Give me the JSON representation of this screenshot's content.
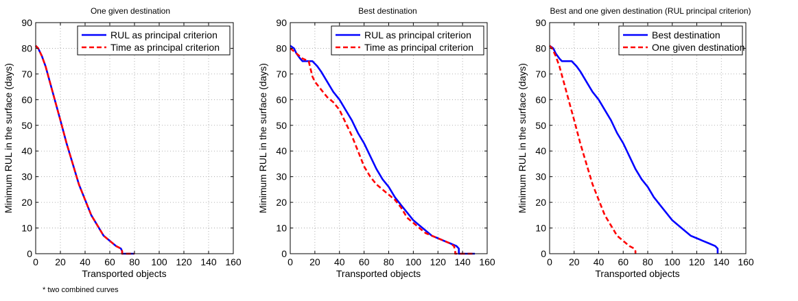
{
  "footnote": "* two combined curves",
  "colors": {
    "blue": "#0000ff",
    "red": "#ff0000",
    "grid": "#9a9a9a",
    "axis": "#000000"
  },
  "chart_data": [
    {
      "type": "line",
      "title": "One given destination",
      "xlabel": "Transported objects",
      "ylabel": "Minimum RUL in the surface (days)",
      "xlim": [
        0,
        160
      ],
      "ylim": [
        0,
        90
      ],
      "xticks": [
        0,
        20,
        40,
        60,
        80,
        100,
        120,
        140,
        160
      ],
      "yticks": [
        0,
        10,
        20,
        30,
        40,
        50,
        60,
        70,
        80,
        90
      ],
      "grid": true,
      "legend_position": "top-right",
      "series": [
        {
          "name": "RUL as principal criterion",
          "color": "#0000ff",
          "dash": "solid",
          "x": [
            0,
            2,
            5,
            8,
            12,
            16,
            20,
            25,
            30,
            35,
            40,
            45,
            50,
            55,
            60,
            65,
            69,
            70,
            70,
            80
          ],
          "y": [
            81,
            80,
            77,
            73,
            66,
            59,
            52,
            43,
            35,
            27,
            21,
            15,
            11,
            7,
            5,
            3,
            2,
            1,
            0,
            0
          ]
        },
        {
          "name": "Time as principal criterion",
          "color": "#ff0000",
          "dash": "dashed",
          "x": [
            0,
            2,
            5,
            8,
            12,
            16,
            20,
            25,
            30,
            35,
            40,
            45,
            50,
            55,
            60,
            65,
            69,
            70,
            70,
            80
          ],
          "y": [
            81,
            80,
            77,
            73,
            66,
            59,
            52,
            43,
            35,
            27,
            21,
            15,
            11,
            7,
            5,
            3,
            2,
            1,
            0,
            0
          ]
        }
      ]
    },
    {
      "type": "line",
      "title": "Best destination",
      "xlabel": "Transported objects",
      "ylabel": "Minimum RUL in the surface (days)",
      "xlim": [
        0,
        160
      ],
      "ylim": [
        0,
        90
      ],
      "xticks": [
        0,
        20,
        40,
        60,
        80,
        100,
        120,
        140,
        160
      ],
      "yticks": [
        0,
        10,
        20,
        30,
        40,
        50,
        60,
        70,
        80,
        90
      ],
      "grid": true,
      "legend_position": "top-right",
      "series": [
        {
          "name": "RUL as principal criterion",
          "color": "#0000ff",
          "dash": "solid",
          "x": [
            0,
            3,
            5,
            8,
            10,
            18,
            22,
            25,
            30,
            35,
            40,
            45,
            50,
            55,
            60,
            65,
            70,
            75,
            80,
            85,
            90,
            95,
            100,
            105,
            110,
            115,
            120,
            125,
            130,
            135,
            137,
            137,
            150
          ],
          "y": [
            81,
            80,
            78,
            76,
            75,
            75,
            73,
            71,
            67,
            63,
            60,
            56,
            52,
            47,
            43,
            38,
            33,
            29,
            26,
            22,
            19,
            16,
            13,
            11,
            9,
            7,
            6,
            5,
            4,
            3,
            2,
            0,
            0
          ]
        },
        {
          "name": "Time as principal criterion",
          "color": "#ff0000",
          "dash": "dashed",
          "x": [
            0,
            5,
            10,
            15,
            18,
            20,
            25,
            30,
            35,
            40,
            45,
            50,
            55,
            60,
            65,
            70,
            75,
            80,
            85,
            90,
            95,
            100,
            105,
            110,
            115,
            120,
            125,
            130,
            133,
            134,
            134,
            150
          ],
          "y": [
            80,
            78,
            76,
            75,
            69,
            67,
            64,
            61,
            59,
            56,
            51,
            46,
            40,
            34,
            30,
            27,
            25,
            23,
            21,
            18,
            14,
            12,
            10,
            8,
            7,
            6,
            5,
            4,
            3,
            1,
            0,
            0
          ]
        }
      ]
    },
    {
      "type": "line",
      "title": "Best and one given destination (RUL principal criterion)",
      "xlabel": "Transported objects",
      "ylabel": "Minimum RUL in the surface (days)",
      "xlim": [
        0,
        160
      ],
      "ylim": [
        0,
        90
      ],
      "xticks": [
        0,
        20,
        40,
        60,
        80,
        100,
        120,
        140,
        160
      ],
      "yticks": [
        0,
        10,
        20,
        30,
        40,
        50,
        60,
        70,
        80,
        90
      ],
      "grid": true,
      "legend_position": "top-right",
      "series": [
        {
          "name": "Best destination",
          "color": "#0000ff",
          "dash": "solid",
          "x": [
            0,
            3,
            5,
            8,
            10,
            18,
            22,
            25,
            30,
            35,
            40,
            45,
            50,
            55,
            60,
            65,
            70,
            75,
            80,
            85,
            90,
            95,
            100,
            105,
            110,
            115,
            120,
            125,
            130,
            135,
            137,
            137
          ],
          "y": [
            81,
            80,
            78,
            76,
            75,
            75,
            73,
            71,
            67,
            63,
            60,
            56,
            52,
            47,
            43,
            38,
            33,
            29,
            26,
            22,
            19,
            16,
            13,
            11,
            9,
            7,
            6,
            5,
            4,
            3,
            2,
            0
          ]
        },
        {
          "name": "One given destination",
          "color": "#ff0000",
          "dash": "dashed",
          "x": [
            0,
            2,
            5,
            8,
            12,
            16,
            20,
            25,
            30,
            35,
            40,
            45,
            50,
            55,
            60,
            65,
            69,
            70,
            70
          ],
          "y": [
            81,
            80,
            77,
            73,
            66,
            59,
            52,
            43,
            35,
            27,
            21,
            15,
            11,
            7,
            5,
            3,
            2,
            1,
            0
          ]
        }
      ]
    }
  ]
}
